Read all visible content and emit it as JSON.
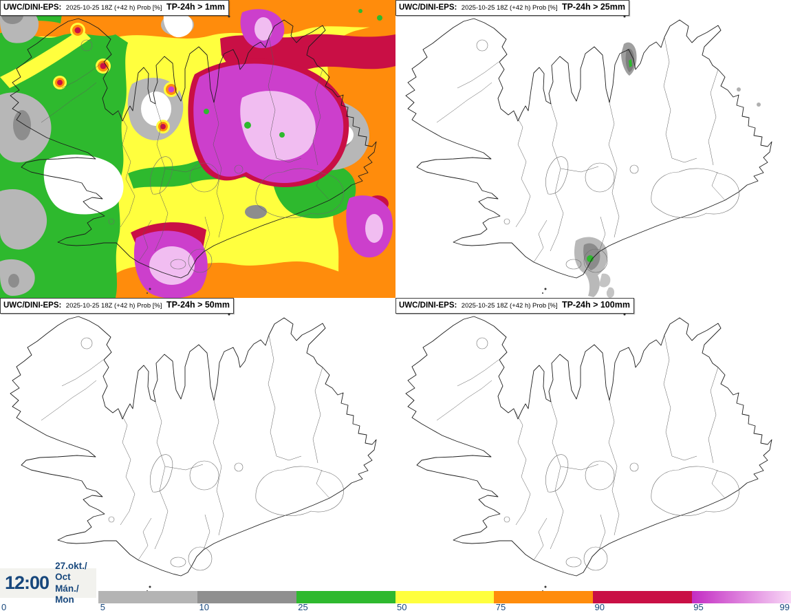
{
  "panels": [
    {
      "model": "UWC/DINI-EPS:",
      "meta": "2025-10-25 18Z (+42 h) Prob [%]",
      "threshold": "TP-24h > 1mm"
    },
    {
      "model": "UWC/DINI-EPS:",
      "meta": "2025-10-25 18Z (+42 h) Prob [%]",
      "threshold": "TP-24h > 25mm"
    },
    {
      "model": "UWC/DINI-EPS:",
      "meta": "2025-10-25 18Z (+42 h) Prob [%]",
      "threshold": "TP-24h > 50mm"
    },
    {
      "model": "UWC/DINI-EPS:",
      "meta": "2025-10-25 18Z (+42 h) Prob [%]",
      "threshold": "TP-24h > 100mm"
    }
  ],
  "footer": {
    "time": "12:00",
    "date_month": "27.okt./ Oct",
    "date_day": "Mán./ Mon"
  },
  "colorbar": {
    "labels": [
      "0",
      "5",
      "10",
      "25",
      "50",
      "75",
      "90",
      "95",
      "99"
    ],
    "text_color": "#17477c",
    "segments": [
      {
        "from": 5,
        "to": 10,
        "color": "#b4b4b4"
      },
      {
        "from": 10,
        "to": 25,
        "color": "#8f8f8f"
      },
      {
        "from": 25,
        "to": 50,
        "color": "#2eb92e"
      },
      {
        "from": 50,
        "to": 75,
        "color": "#ffff3e"
      },
      {
        "from": 75,
        "to": 90,
        "color": "#ff8c0c"
      },
      {
        "from": 90,
        "to": 95,
        "color": "#c90f45"
      },
      {
        "from": 95,
        "to": 99,
        "color_start": "#c32cc3",
        "color_end": "#f8d7f6"
      }
    ]
  }
}
